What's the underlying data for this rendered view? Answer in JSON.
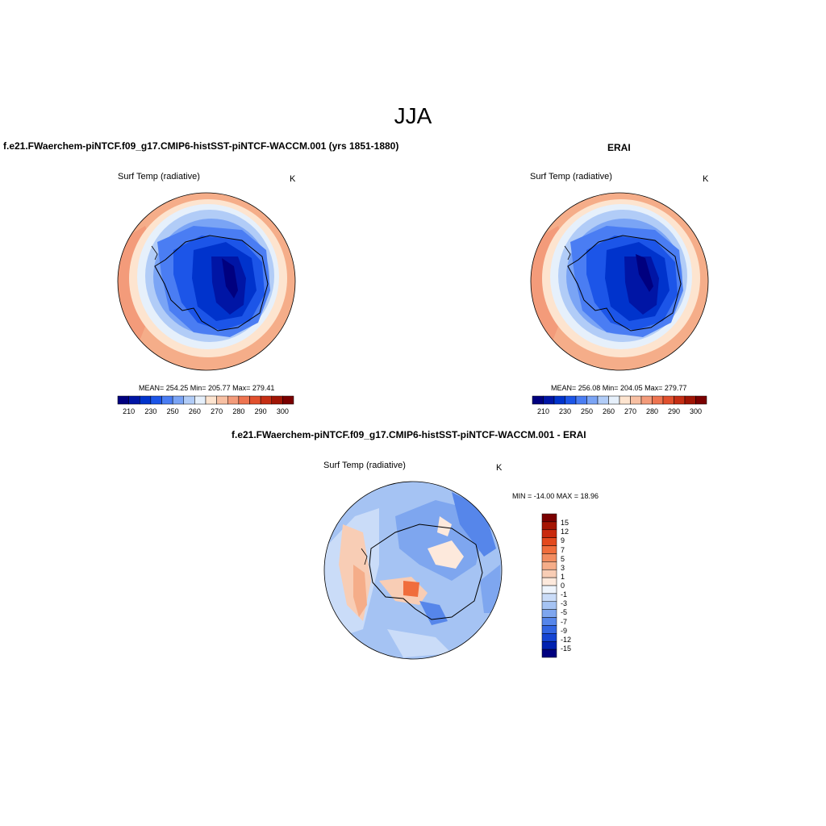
{
  "main_title": "JJA",
  "panels": [
    {
      "title": "f.e21.FWaerchem-piNTCF.f09_g17.CMIP6-histSST-piNTCF-WACCM.001 (yrs 1851-1880)",
      "variable": "Surf Temp (radiative)",
      "units": "K",
      "stats": "MEAN= 254.25  Min= 205.77  Max= 279.41"
    },
    {
      "title": "ERAI",
      "variable": "Surf Temp (radiative)",
      "units": "K",
      "stats": "MEAN= 256.08  Min= 204.05  Max= 279.77"
    },
    {
      "title": "f.e21.FWaerchem-piNTCF.f09_g17.CMIP6-histSST-piNTCF-WACCM.001 - ERAI",
      "variable": "Surf Temp (radiative)",
      "units": "K",
      "stats": "MIN = -14.00 MAX =  18.96"
    }
  ],
  "colorbar_abs": {
    "colors": [
      "#00007f",
      "#0015a5",
      "#0033cc",
      "#1c55e8",
      "#4a7df3",
      "#7aa4f5",
      "#b1ccf7",
      "#e6f0fb",
      "#fde4cf",
      "#f8c0a3",
      "#f39b7a",
      "#ee7450",
      "#e1502d",
      "#c52e14",
      "#a01505",
      "#7a0000"
    ],
    "labels": [
      "210",
      "230",
      "250",
      "260",
      "270",
      "280",
      "290",
      "300"
    ]
  },
  "colorbar_diff": {
    "colors": [
      "#7a0000",
      "#a51503",
      "#c92a0e",
      "#e3491d",
      "#f06d3c",
      "#f28c60",
      "#f5ad89",
      "#f8cdb5",
      "#fde9dc",
      "#eef4fc",
      "#cadcf8",
      "#a5c3f3",
      "#7ea6ef",
      "#5686ea",
      "#3265e2",
      "#1444d3",
      "#0021b0",
      "#00007f"
    ],
    "labels": [
      "15",
      "12",
      "9",
      "7",
      "5",
      "3",
      "1",
      "0",
      "-1",
      "-3",
      "-5",
      "-7",
      "-9",
      "-12",
      "-15"
    ]
  }
}
